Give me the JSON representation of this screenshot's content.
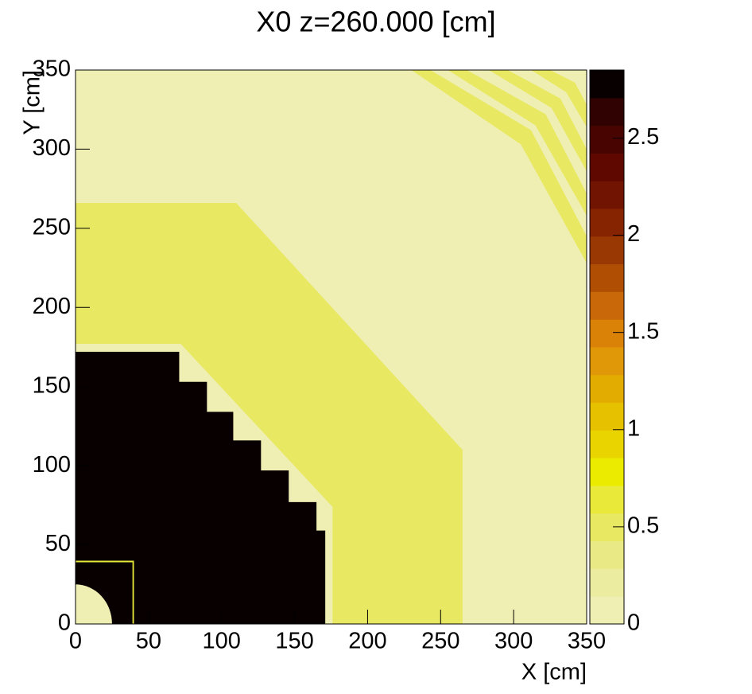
{
  "chart_data": {
    "type": "map2d",
    "title": "X0 z=260.000 [cm]",
    "x_label": "X [cm]",
    "y_label": "Y [cm]",
    "xlim": [
      0,
      350
    ],
    "xticks": [
      0,
      50,
      100,
      150,
      200,
      250,
      300,
      350
    ],
    "ylim": [
      0,
      350
    ],
    "yticks": [
      0,
      50,
      100,
      150,
      200,
      250,
      300,
      350
    ],
    "zlim": [
      0,
      2.85
    ],
    "zticks": [
      0,
      0.5,
      1,
      1.5,
      2,
      2.5
    ],
    "palette": [
      "#efefb4",
      "#ececa0",
      "#e9e985",
      "#e8e862",
      "#e9e93a",
      "#ebeb00",
      "#e9d400",
      "#e6c100",
      "#e3ac00",
      "#e09808",
      "#da8208",
      "#c86808",
      "#b04e04",
      "#9a3804",
      "#862402",
      "#721402",
      "#5e0800",
      "#480400",
      "#300202",
      "#080000"
    ],
    "background_value": 0.05,
    "regions": [
      {
        "value": 0.5,
        "points": [
          [
            0,
            266
          ],
          [
            110,
            266
          ],
          [
            265,
            110
          ],
          [
            265,
            0
          ],
          [
            176,
            0
          ],
          [
            176,
            74
          ],
          [
            72,
            177
          ],
          [
            0,
            177
          ]
        ]
      },
      {
        "value": 2.8,
        "points": [
          [
            0,
            0
          ],
          [
            0,
            172
          ],
          [
            71,
            172
          ],
          [
            71,
            153
          ],
          [
            90,
            153
          ],
          [
            90,
            134
          ],
          [
            108,
            134
          ],
          [
            108,
            116
          ],
          [
            127,
            116
          ],
          [
            127,
            97
          ],
          [
            146,
            97
          ],
          [
            146,
            77
          ],
          [
            165,
            77
          ],
          [
            165,
            59
          ],
          [
            171,
            59
          ],
          [
            171,
            0
          ]
        ]
      },
      {
        "value": 0.6,
        "points": [
          [
            0,
            0
          ],
          [
            40,
            0
          ],
          [
            40,
            40
          ],
          [
            0,
            40
          ]
        ]
      },
      {
        "value": 2.8,
        "points": [
          [
            0,
            0
          ],
          [
            39,
            0
          ],
          [
            39,
            39
          ],
          [
            0,
            39
          ]
        ]
      },
      {
        "value": 0.05,
        "center": [
          0,
          0
        ],
        "r": 25
      },
      {
        "value": 0.5,
        "points": [
          [
            230,
            350
          ],
          [
            243,
            350
          ],
          [
            312,
            312
          ],
          [
            350,
            245
          ],
          [
            350,
            228
          ],
          [
            305,
            303
          ]
        ]
      },
      {
        "value": 0.5,
        "points": [
          [
            255,
            350
          ],
          [
            268,
            350
          ],
          [
            322,
            322
          ],
          [
            350,
            272
          ],
          [
            350,
            258
          ],
          [
            315,
            315
          ]
        ]
      },
      {
        "value": 0.5,
        "points": [
          [
            283,
            350
          ],
          [
            296,
            350
          ],
          [
            332,
            332
          ],
          [
            350,
            300
          ],
          [
            350,
            286
          ],
          [
            326,
            326
          ]
        ]
      },
      {
        "value": 0.5,
        "points": [
          [
            312,
            350
          ],
          [
            325,
            350
          ],
          [
            342,
            342
          ],
          [
            350,
            328
          ],
          [
            350,
            314
          ],
          [
            336,
            336
          ]
        ]
      }
    ]
  }
}
